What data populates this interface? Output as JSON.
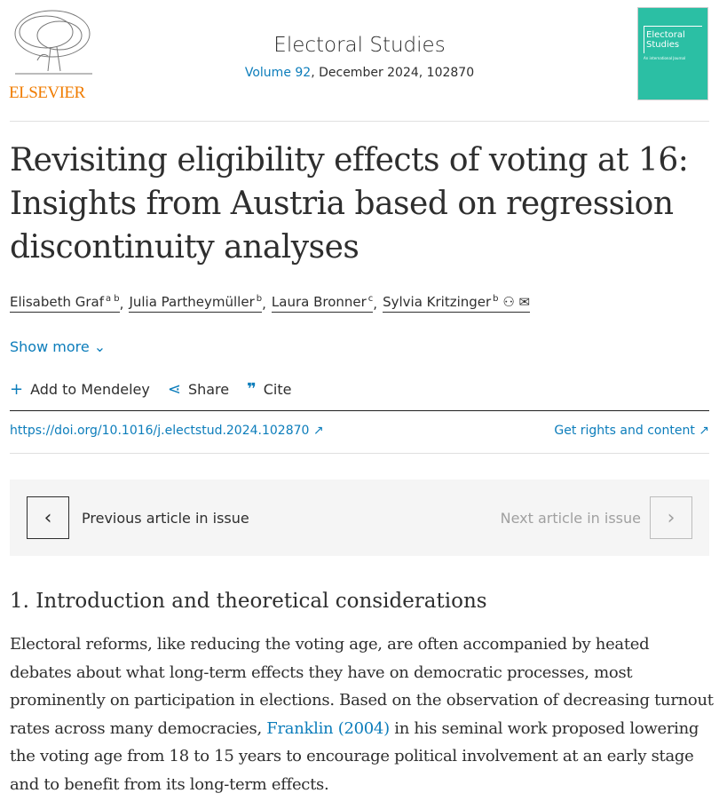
{
  "publisher": {
    "name": "ELSEVIER"
  },
  "journal": {
    "title": "Electoral Studies",
    "volume": "Volume 92",
    "rest": ", December 2024, 102870",
    "cover_title": "Electoral Studies",
    "cover_subtitle": "An international Journal"
  },
  "article": {
    "title": "Revisiting eligibility effects of voting at 16: Insights from Austria based on regression discontinuity analyses"
  },
  "authors": [
    {
      "name": "Elisabeth Graf",
      "sup": "a b"
    },
    {
      "name": "Julia Partheymüller",
      "sup": "b"
    },
    {
      "name": "Laura Bronner",
      "sup": "c"
    },
    {
      "name": "Sylvia Kritzinger",
      "sup": "b"
    }
  ],
  "show_more": "Show more",
  "actions": {
    "mendeley": "Add to Mendeley",
    "share": "Share",
    "cite": "Cite"
  },
  "links": {
    "doi": "https://doi.org/10.1016/j.electstud.2024.102870 ↗",
    "rights": "Get rights and content ↗"
  },
  "nav": {
    "prev": "Previous article in issue",
    "next": "Next article in issue"
  },
  "section": {
    "heading": "1. Introduction and theoretical considerations",
    "p1": "Electoral reforms, like reducing the voting age, are often accompanied by heated debates about what long-term effects they have on democratic processes, most prominently on participation in elections. Based on the observation of decreasing turnout rates across many democracies, ",
    "cite": "Franklin (2004)",
    "p2": " in his seminal work proposed lowering the voting age from 18 to 15 years to encourage political involvement at an early stage and to benefit from its long-term effects."
  },
  "colors": {
    "link": "#0c7dbb",
    "elsevier": "#f07c00",
    "cover": "#2bbfa4"
  }
}
